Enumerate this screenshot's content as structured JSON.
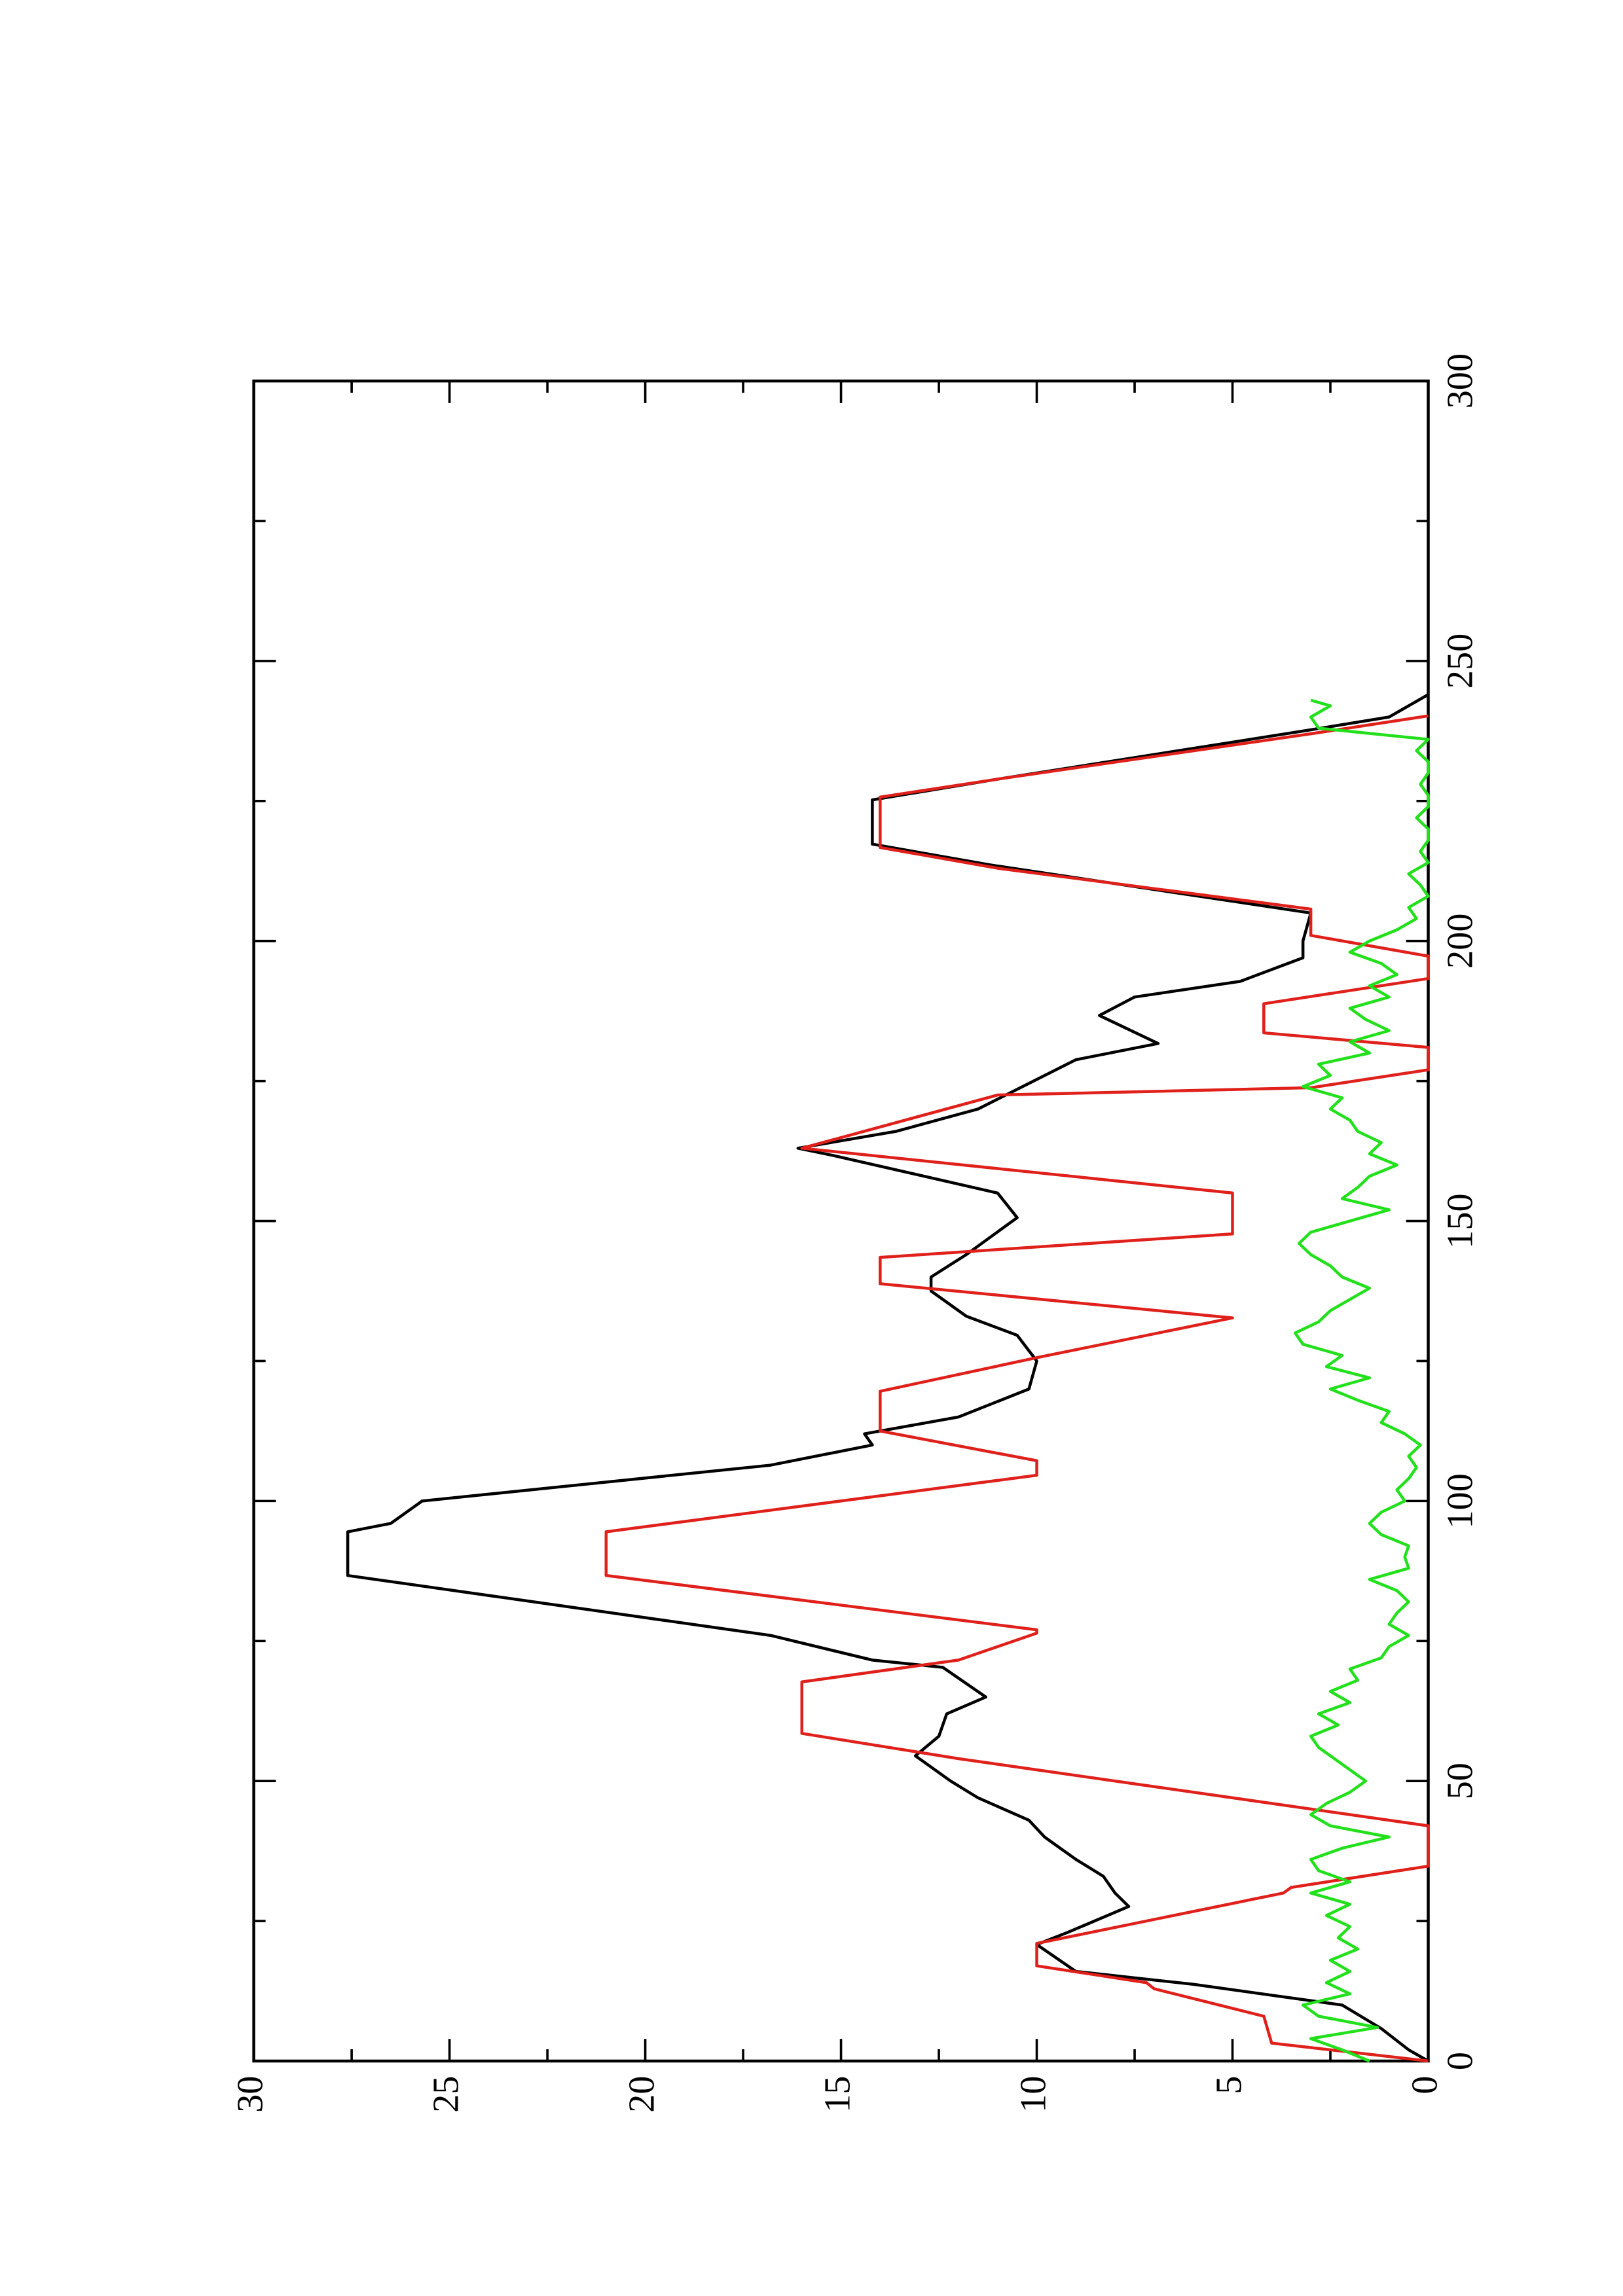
{
  "chart_data": {
    "type": "line",
    "orientation": "rotated-90",
    "xlim": [
      0,
      300
    ],
    "xticks": [
      0,
      50,
      100,
      150,
      200,
      250,
      300
    ],
    "xminorticks": [
      25,
      75,
      125,
      175,
      225,
      275
    ],
    "ylim": [
      0,
      30
    ],
    "yticks": [
      0,
      5,
      10,
      15,
      20,
      25,
      30
    ],
    "yminorticks": [
      2.5,
      7.5,
      12.5,
      17.5,
      22.5,
      27.5
    ],
    "grid": false,
    "series": [
      {
        "color": "#000000",
        "x": [
          0,
          2,
          5.8,
          10,
          13.7,
          16,
          20.8,
          23,
          27.6,
          30,
          33,
          36,
          40,
          43,
          47,
          50,
          54.5,
          58,
          62,
          65,
          70.3,
          71.6,
          76,
          86.7,
          94.5,
          96,
          100,
          106.4,
          110,
          112,
          115,
          120,
          125,
          129.6,
          133,
          137.5,
          140,
          144,
          150.6,
          155,
          161.7,
          163,
          166,
          170,
          178.8,
          181.7,
          186.7,
          190,
          192.8,
          197,
          200,
          205,
          213.6,
          217.3,
          225.2,
          228.9,
          237.6,
          240,
          244
        ],
        "values": [
          0,
          0.5,
          1.2,
          2.2,
          6,
          9,
          10,
          9.2,
          7.65,
          8,
          8.3,
          9,
          9.8,
          10.2,
          11.5,
          12.2,
          13.1,
          12.5,
          12.3,
          11.3,
          12.4,
          14.2,
          16.8,
          27.6,
          27.6,
          26.5,
          25.7,
          16.8,
          14.2,
          14.4,
          12,
          10.2,
          10,
          10.5,
          11.8,
          12.7,
          12.7,
          11.8,
          10.5,
          11,
          15.2,
          16.1,
          13.6,
          11.5,
          9,
          6.9,
          8.4,
          7.5,
          4.8,
          3.2,
          3.2,
          3,
          11.2,
          14.2,
          14.2,
          11,
          3.1,
          1,
          0
        ]
      },
      {
        "color": "#e0201b",
        "x": [
          0,
          3.2,
          8,
          12.9,
          14,
          17,
          21,
          30,
          31,
          34.8,
          38,
          42,
          54,
          58.5,
          67.7,
          71.6,
          76.4,
          77,
          86.7,
          94.5,
          104.6,
          107.2,
          112.5,
          119.6,
          125.6,
          132.7,
          138.8,
          143.5,
          147.7,
          155,
          163,
          172.5,
          173.8,
          177,
          181,
          183.6,
          188.8,
          193.3,
          197.3,
          201,
          205.7,
          213,
          216.7,
          225.7,
          228.9,
          237,
          240.2
        ],
        "values": [
          0,
          4,
          4.2,
          7,
          7.2,
          10,
          10,
          3.7,
          3.5,
          0,
          0,
          0,
          12,
          16,
          16,
          12,
          10,
          10,
          21,
          21,
          10,
          10,
          14,
          14,
          10,
          5,
          14,
          14,
          5,
          5,
          16,
          11,
          3,
          0,
          0,
          4.2,
          4.2,
          0,
          0,
          3,
          3,
          11,
          14,
          14,
          11,
          3,
          0
        ]
      },
      {
        "color": "#22e01b",
        "x": [
          0,
          2,
          4,
          6,
          8,
          10,
          12,
          14,
          16,
          18,
          20,
          22,
          24,
          26,
          28,
          30,
          32,
          34,
          36,
          38,
          40,
          42,
          44,
          46,
          48,
          50,
          52,
          54,
          56,
          58,
          60,
          62,
          64,
          66,
          68,
          70,
          72,
          74,
          76,
          78,
          80,
          82,
          84,
          86,
          88,
          90,
          92,
          94,
          96,
          98,
          100,
          102,
          104,
          106,
          108,
          110,
          112,
          114,
          116,
          118,
          120,
          122,
          124,
          126,
          128,
          130,
          132,
          134,
          136,
          138,
          140,
          142,
          144,
          146,
          148,
          150,
          152,
          154,
          156,
          158,
          160,
          162,
          164,
          166,
          168,
          170,
          172,
          174,
          176,
          178,
          180,
          182,
          184,
          186,
          188,
          190,
          192,
          194,
          196,
          198,
          200,
          202,
          204,
          206,
          208,
          210,
          212,
          214,
          216,
          218,
          220,
          222,
          224,
          226,
          228,
          230,
          232,
          234,
          236,
          238,
          240,
          242,
          243
        ],
        "values": [
          1.5,
          2.2,
          3.0,
          1.3,
          2.8,
          3.2,
          2.0,
          2.6,
          2.0,
          2.5,
          1.8,
          2.3,
          2.0,
          2.6,
          2.0,
          3.0,
          2.0,
          2.8,
          3.0,
          2.2,
          1.0,
          2.5,
          3.0,
          2.6,
          2.0,
          1.6,
          2.0,
          2.4,
          2.8,
          3.0,
          2.3,
          2.8,
          2.0,
          2.5,
          1.8,
          2.0,
          1.2,
          1.0,
          0.5,
          1.0,
          0.8,
          0.5,
          0.8,
          1.5,
          0.5,
          0.6,
          0.5,
          1.2,
          1.5,
          1.2,
          0.6,
          0.8,
          0.5,
          0.3,
          0.5,
          0.2,
          0.6,
          1.2,
          1.0,
          1.8,
          2.5,
          1.5,
          2.6,
          2.2,
          3.2,
          3.4,
          2.8,
          2.5,
          2.0,
          1.5,
          2.2,
          2.5,
          3.0,
          3.3,
          3.0,
          2.0,
          1.0,
          2.2,
          1.8,
          1.5,
          0.8,
          1.5,
          1.2,
          1.8,
          2.0,
          2.5,
          2.2,
          3.2,
          2.5,
          2.8,
          1.5,
          2.0,
          1.0,
          1.6,
          2.0,
          1.0,
          1.5,
          0.8,
          1.2,
          2.0,
          1.5,
          0.8,
          0.3,
          0.5,
          0,
          0.2,
          0.5,
          0,
          0.2,
          0,
          0,
          0.3,
          0,
          0,
          0.2,
          0,
          0,
          0.3,
          0,
          2.8,
          3.0,
          2.5,
          3.0
        ]
      }
    ]
  }
}
